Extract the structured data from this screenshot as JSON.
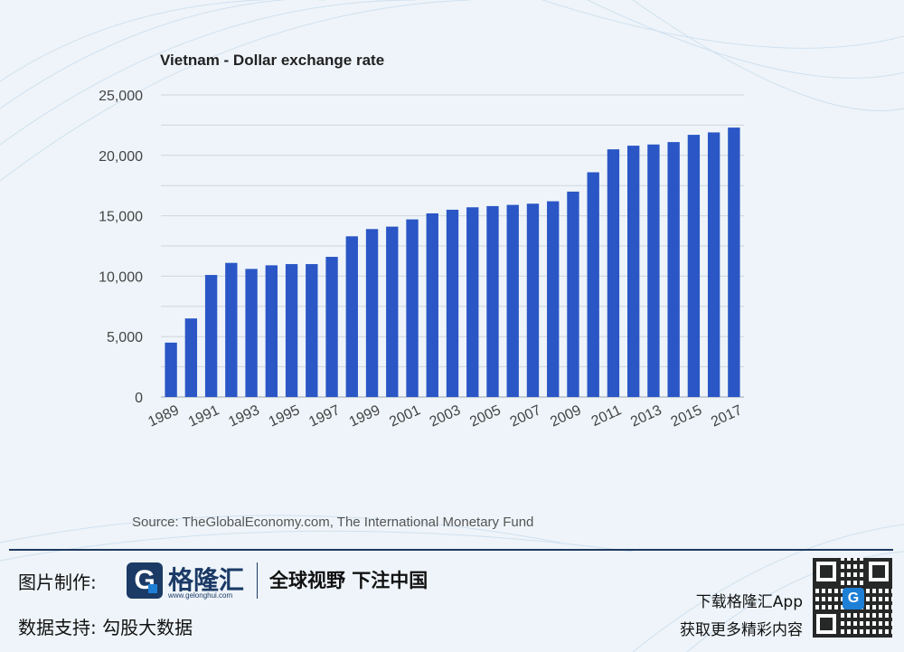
{
  "chart_data": {
    "type": "bar",
    "title": "Vietnam - Dollar exchange rate",
    "categories": [
      "1989",
      "1990",
      "1991",
      "1992",
      "1993",
      "1994",
      "1995",
      "1996",
      "1997",
      "1998",
      "1999",
      "2000",
      "2001",
      "2002",
      "2003",
      "2004",
      "2005",
      "2006",
      "2007",
      "2008",
      "2009",
      "2010",
      "2011",
      "2012",
      "2013",
      "2014",
      "2015",
      "2016",
      "2017"
    ],
    "x_tick_labels": [
      "1989",
      "1991",
      "1993",
      "1995",
      "1997",
      "1999",
      "2001",
      "2003",
      "2005",
      "2007",
      "2009",
      "2011",
      "2013",
      "2015",
      "2017"
    ],
    "values": [
      4500,
      6500,
      10100,
      11100,
      10600,
      10900,
      11000,
      11000,
      11600,
      13300,
      13900,
      14100,
      14700,
      15200,
      15500,
      15700,
      15800,
      15900,
      16000,
      16200,
      17000,
      18600,
      20500,
      20800,
      20900,
      21100,
      21700,
      21900,
      22300
    ],
    "ylim": [
      0,
      25000
    ],
    "y_ticks": [
      "0",
      "5,000",
      "10,000",
      "15,000",
      "20,000",
      "25,000"
    ],
    "xlabel": "",
    "ylabel": "",
    "grid": true,
    "bar_color": "#2a56c6"
  },
  "source": "Source: TheGlobalEconomy.com, The International Monetary Fund",
  "footer": {
    "credit_label": "图片制作:",
    "logo_name": "格隆汇",
    "logo_url": "www.gelonghui.com",
    "slogan": "全球视野 下注中国",
    "data_support": "数据支持:  勾股大数据",
    "app_download": "下载格隆汇App",
    "app_more": "获取更多精彩内容"
  }
}
